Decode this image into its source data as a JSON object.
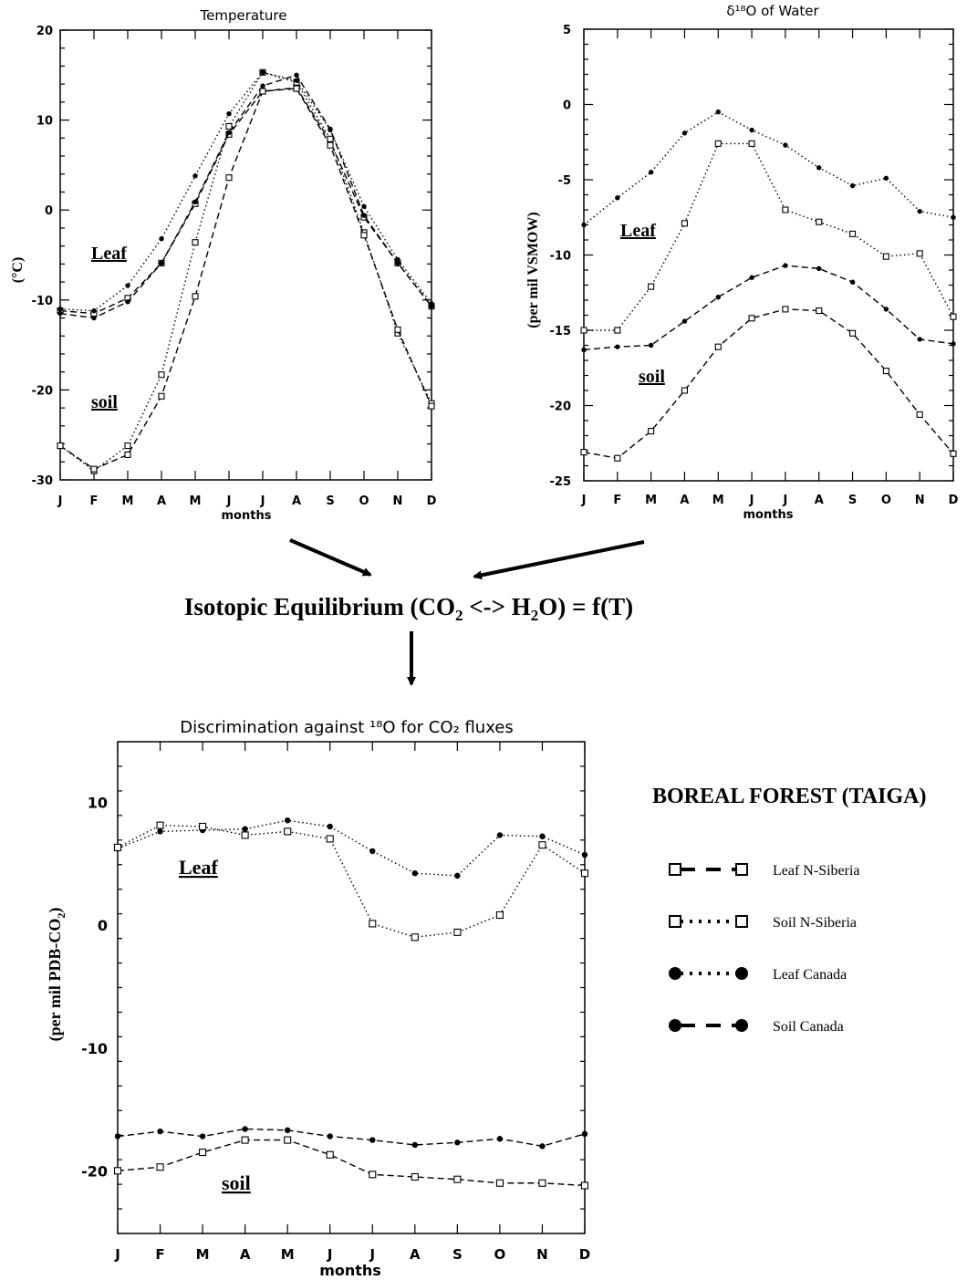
{
  "figure": {
    "equation": {
      "prefix": "Isotopic Equilibrium (CO",
      "sub1": "2",
      "middle": " <-> H",
      "sub2": "2",
      "suffix": "O) = f(T)"
    },
    "legend_title": "BOREAL FOREST (TAIGA)",
    "legend_items": [
      {
        "label": "Leaf N-Siberia",
        "marker": "open-square",
        "line": "dashed"
      },
      {
        "label": "Soil N-Siberia",
        "marker": "open-square",
        "line": "dotted"
      },
      {
        "label": "Leaf Canada",
        "marker": "filled-circle",
        "line": "dotted"
      },
      {
        "label": "Soil Canada",
        "marker": "filled-circle",
        "line": "dashed"
      }
    ]
  },
  "chart_data": [
    {
      "id": "temperature",
      "type": "line",
      "title": "Temperature",
      "xlabel": "months",
      "ylabel": "(°C)",
      "categories": [
        "J",
        "F",
        "M",
        "A",
        "M",
        "J",
        "J",
        "A",
        "S",
        "O",
        "N",
        "D"
      ],
      "ylim": [
        -30,
        20
      ],
      "yticks": [
        -30,
        -20,
        -10,
        0,
        10,
        20
      ],
      "annotations": [
        "Leaf",
        "soil"
      ],
      "series": [
        {
          "style": "sq-dash",
          "values": [
            -11.2,
            -11.5,
            -9.8,
            -5.9,
            0.7,
            8.4,
            13.2,
            13.6,
            7.6,
            -0.8,
            -5.9,
            -10.7
          ]
        },
        {
          "style": "sq-dot",
          "values": [
            -26.2,
            -29.0,
            -26.2,
            -18.3,
            -3.6,
            9.3,
            15.3,
            14.2,
            7.9,
            -2.5,
            -13.7,
            -21.5
          ]
        },
        {
          "style": "ci-dot",
          "values": [
            -11.0,
            -11.2,
            -8.4,
            -3.2,
            3.8,
            10.7,
            15.3,
            14.4,
            8.9,
            0.4,
            -5.5,
            -10.4
          ]
        },
        {
          "style": "ci-dash",
          "values": [
            -11.5,
            -12.0,
            -10.2,
            -5.9,
            0.9,
            8.6,
            13.8,
            15.0,
            9.0,
            -0.6,
            -5.9,
            -10.7
          ]
        },
        {
          "style": "sq-dashb",
          "values": [
            -26.2,
            -28.8,
            -27.2,
            -20.7,
            -9.6,
            3.6,
            13.2,
            13.5,
            7.2,
            -2.8,
            -13.3,
            -21.8
          ]
        }
      ]
    },
    {
      "id": "d18o-water",
      "type": "line",
      "title": "δ¹⁸O of Water",
      "xlabel": "months",
      "ylabel": "(per mil VSMOW)",
      "categories": [
        "J",
        "F",
        "M",
        "A",
        "M",
        "J",
        "J",
        "A",
        "S",
        "O",
        "N",
        "D"
      ],
      "ylim": [
        -25,
        5
      ],
      "yticks": [
        -25,
        -20,
        -15,
        -10,
        -5,
        0,
        5
      ],
      "annotations": [
        "Leaf",
        "soil"
      ],
      "series": [
        {
          "style": "ci-dot",
          "values": [
            -8.0,
            -6.2,
            -4.5,
            -1.9,
            -0.5,
            -1.7,
            -2.7,
            -4.2,
            -5.4,
            -4.9,
            -7.1,
            -7.5
          ]
        },
        {
          "style": "sq-dot",
          "values": [
            -15.0,
            -15.0,
            -12.1,
            -7.9,
            -2.6,
            -2.6,
            -7.0,
            -7.8,
            -8.6,
            -10.1,
            -9.9,
            -14.1
          ]
        },
        {
          "style": "ci-dash",
          "values": [
            -16.3,
            -16.1,
            -16.0,
            -14.4,
            -12.8,
            -11.5,
            -10.7,
            -10.9,
            -11.8,
            -13.6,
            -15.6,
            -15.9
          ]
        },
        {
          "style": "sq-dash",
          "values": [
            -23.1,
            -23.5,
            -21.7,
            -19.0,
            -16.1,
            -14.2,
            -13.6,
            -13.7,
            -15.2,
            -17.7,
            -20.6,
            -23.2
          ]
        }
      ]
    },
    {
      "id": "discrimination",
      "type": "line",
      "title": "Discrimination against ¹⁸O for CO₂ fluxes",
      "xlabel": "months",
      "ylabel": "(per mil PDB-CO",
      "ylabel_sub": "2",
      "ylabel_end": ")",
      "categories": [
        "J",
        "F",
        "M",
        "A",
        "M",
        "J",
        "J",
        "A",
        "S",
        "O",
        "N",
        "D"
      ],
      "ylim": [
        -25,
        15
      ],
      "yticks": [
        -20,
        -10,
        0,
        10
      ],
      "annotations": [
        "Leaf",
        "soil"
      ],
      "series": [
        {
          "style": "ci-dot",
          "values": [
            6.3,
            7.7,
            7.8,
            7.9,
            8.6,
            8.1,
            6.1,
            4.3,
            4.1,
            7.4,
            7.3,
            5.8
          ]
        },
        {
          "style": "sq-dot",
          "values": [
            6.4,
            8.2,
            8.1,
            7.4,
            7.7,
            7.1,
            0.2,
            -0.9,
            -0.5,
            0.9,
            6.6,
            4.3
          ]
        },
        {
          "style": "ci-dash",
          "values": [
            -17.1,
            -16.7,
            -17.1,
            -16.5,
            -16.6,
            -17.1,
            -17.4,
            -17.8,
            -17.6,
            -17.3,
            -17.9,
            -16.9
          ]
        },
        {
          "style": "sq-dash",
          "values": [
            -19.9,
            -19.6,
            -18.4,
            -17.4,
            -17.4,
            -18.6,
            -20.2,
            -20.4,
            -20.6,
            -20.9,
            -20.9,
            -21.1
          ]
        }
      ]
    }
  ]
}
